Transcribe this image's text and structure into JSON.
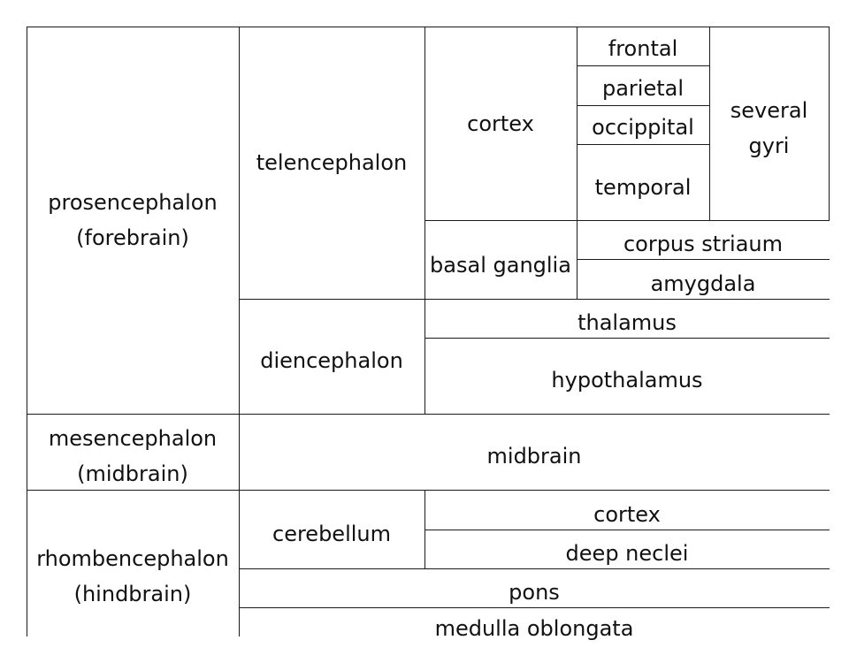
{
  "diagram": {
    "prosencephalon": "prosencephalon\n(forebrain)",
    "telencephalon": "telencephalon",
    "cortex": "cortex",
    "frontal": "frontal",
    "parietal": "parietal",
    "occipital": "occippital",
    "temporal": "temporal",
    "several_gyri": "several\ngyri",
    "basal_ganglia": "basal ganglia",
    "corpus_striatum": "corpus striaum",
    "amygdala": "amygdala",
    "diencephalon": "diencephalon",
    "thalamus": "thalamus",
    "hypothalamus": "hypothalamus",
    "mesencephalon": "mesencephalon\n(midbrain)",
    "midbrain": "midbrain",
    "rhombencephalon": "rhombencephalon\n(hindbrain)",
    "cerebellum": "cerebellum",
    "cerebellum_cortex": "cortex",
    "deep_nuclei": "deep neclei",
    "pons": "pons",
    "medulla": "medulla oblongata"
  }
}
